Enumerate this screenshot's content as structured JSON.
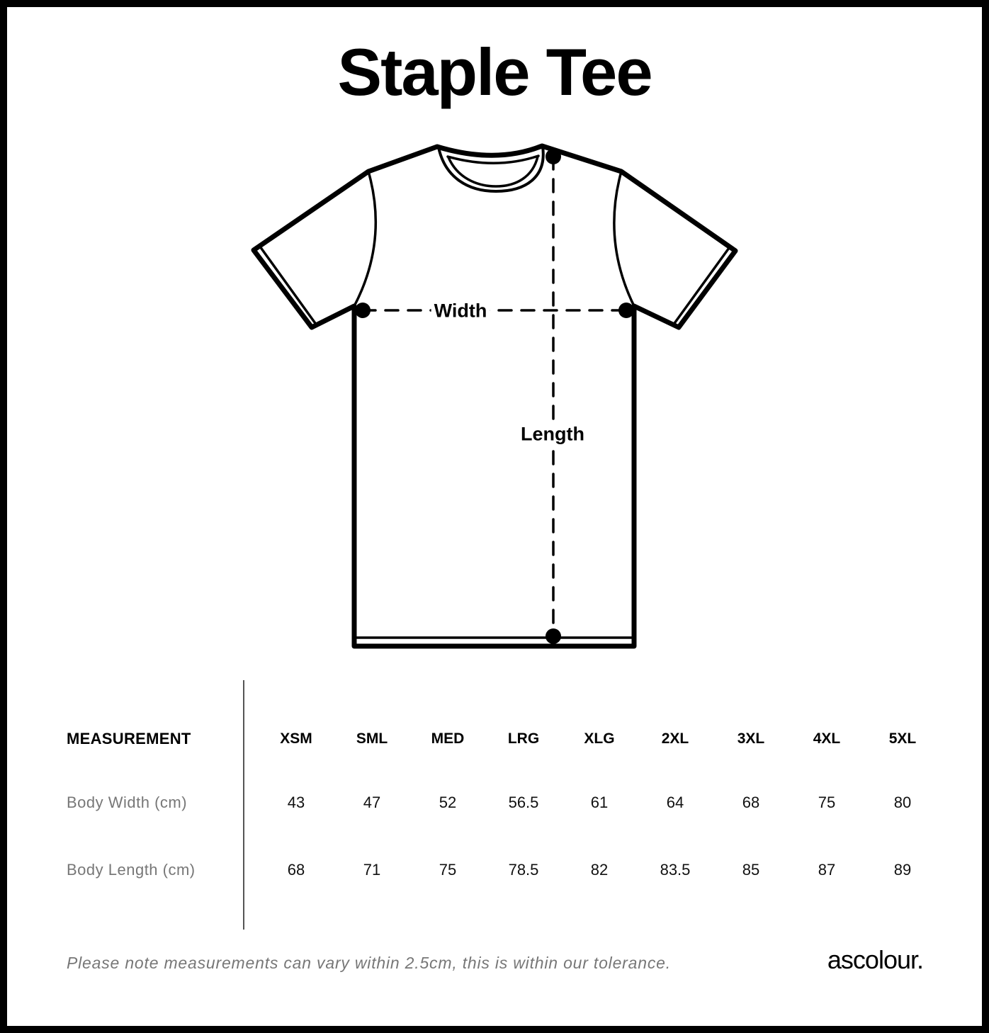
{
  "title": "Staple Tee",
  "diagram": {
    "width_label": "Width",
    "length_label": "Length"
  },
  "table": {
    "header_label": "MEASUREMENT",
    "sizes": [
      "XSM",
      "SML",
      "MED",
      "LRG",
      "XLG",
      "2XL",
      "3XL",
      "4XL",
      "5XL"
    ],
    "rows": [
      {
        "label": "Body Width (cm)",
        "values": [
          "43",
          "47",
          "52",
          "56.5",
          "61",
          "64",
          "68",
          "75",
          "80"
        ]
      },
      {
        "label": "Body Length (cm)",
        "values": [
          "68",
          "71",
          "75",
          "78.5",
          "82",
          "83.5",
          "85",
          "87",
          "89"
        ]
      }
    ]
  },
  "footer": {
    "note": "Please note measurements can vary within 2.5cm, this is within our tolerance.",
    "brand": "ascolour."
  }
}
